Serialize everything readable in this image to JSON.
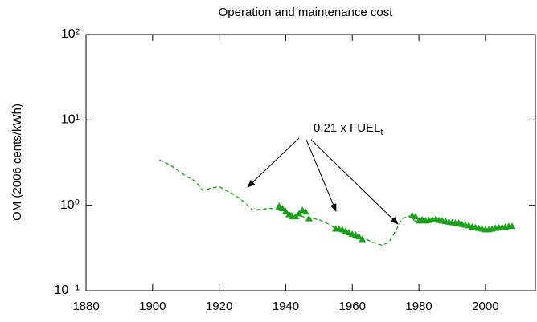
{
  "chart_data": {
    "type": "line",
    "title": "Operation and maintenance cost",
    "y_label": "OM (2006 cents/kWh)",
    "annotation": {
      "text": "0.21 x FUEL",
      "subscript": "t"
    },
    "xlim": [
      1880,
      2015
    ],
    "xticks": [
      1880,
      1900,
      1920,
      1940,
      1960,
      1980,
      2000
    ],
    "ylim": [
      0.1,
      100
    ],
    "log_y": true,
    "yticks": [
      {
        "value": 0.1,
        "label": "10⁻¹"
      },
      {
        "value": 1,
        "label": "10⁰"
      },
      {
        "value": 10,
        "label": "10¹"
      },
      {
        "value": 100,
        "label": "10²"
      }
    ],
    "series": [
      {
        "style": "dashed",
        "color": "#1aa01a",
        "x": [
          1902,
          1905,
          1908,
          1910,
          1913,
          1915,
          1918,
          1920,
          1922,
          1925,
          1928,
          1930,
          1933,
          1935,
          1938,
          1940,
          1943,
          1946,
          1950,
          1953,
          1956,
          1960,
          1963,
          1966,
          1969,
          1971,
          1973,
          1975,
          1977,
          1979
        ],
        "values": [
          3.4,
          3.0,
          2.5,
          2.2,
          1.9,
          1.5,
          1.6,
          1.65,
          1.5,
          1.3,
          1.05,
          0.88,
          0.9,
          0.92,
          0.9,
          0.85,
          0.78,
          0.72,
          0.68,
          0.6,
          0.5,
          0.45,
          0.42,
          0.37,
          0.34,
          0.37,
          0.5,
          0.7,
          0.75,
          0.65
        ]
      },
      {
        "style": "triangles",
        "color": "#1aa01a",
        "x": [
          1938,
          1939,
          1940,
          1941,
          1942,
          1943,
          1944,
          1945,
          1946,
          1947,
          1955,
          1956,
          1957,
          1958,
          1959,
          1960,
          1961,
          1962,
          1963,
          1978,
          1979,
          1980,
          1981,
          1982,
          1983,
          1984,
          1985,
          1986,
          1987,
          1988,
          1989,
          1990,
          1991,
          1992,
          1993,
          1994,
          1995,
          1996,
          1997,
          1998,
          1999,
          2000,
          2001,
          2002,
          2003,
          2004,
          2005,
          2006,
          2007,
          2008
        ],
        "values": [
          0.98,
          0.92,
          0.85,
          0.78,
          0.74,
          0.74,
          0.8,
          0.88,
          0.84,
          0.7,
          0.53,
          0.53,
          0.52,
          0.5,
          0.48,
          0.46,
          0.45,
          0.43,
          0.4,
          0.76,
          0.74,
          0.66,
          0.68,
          0.66,
          0.67,
          0.68,
          0.68,
          0.67,
          0.66,
          0.65,
          0.64,
          0.63,
          0.62,
          0.62,
          0.6,
          0.59,
          0.58,
          0.56,
          0.55,
          0.54,
          0.53,
          0.52,
          0.52,
          0.53,
          0.54,
          0.55,
          0.55,
          0.56,
          0.57,
          0.57
        ]
      }
    ]
  }
}
